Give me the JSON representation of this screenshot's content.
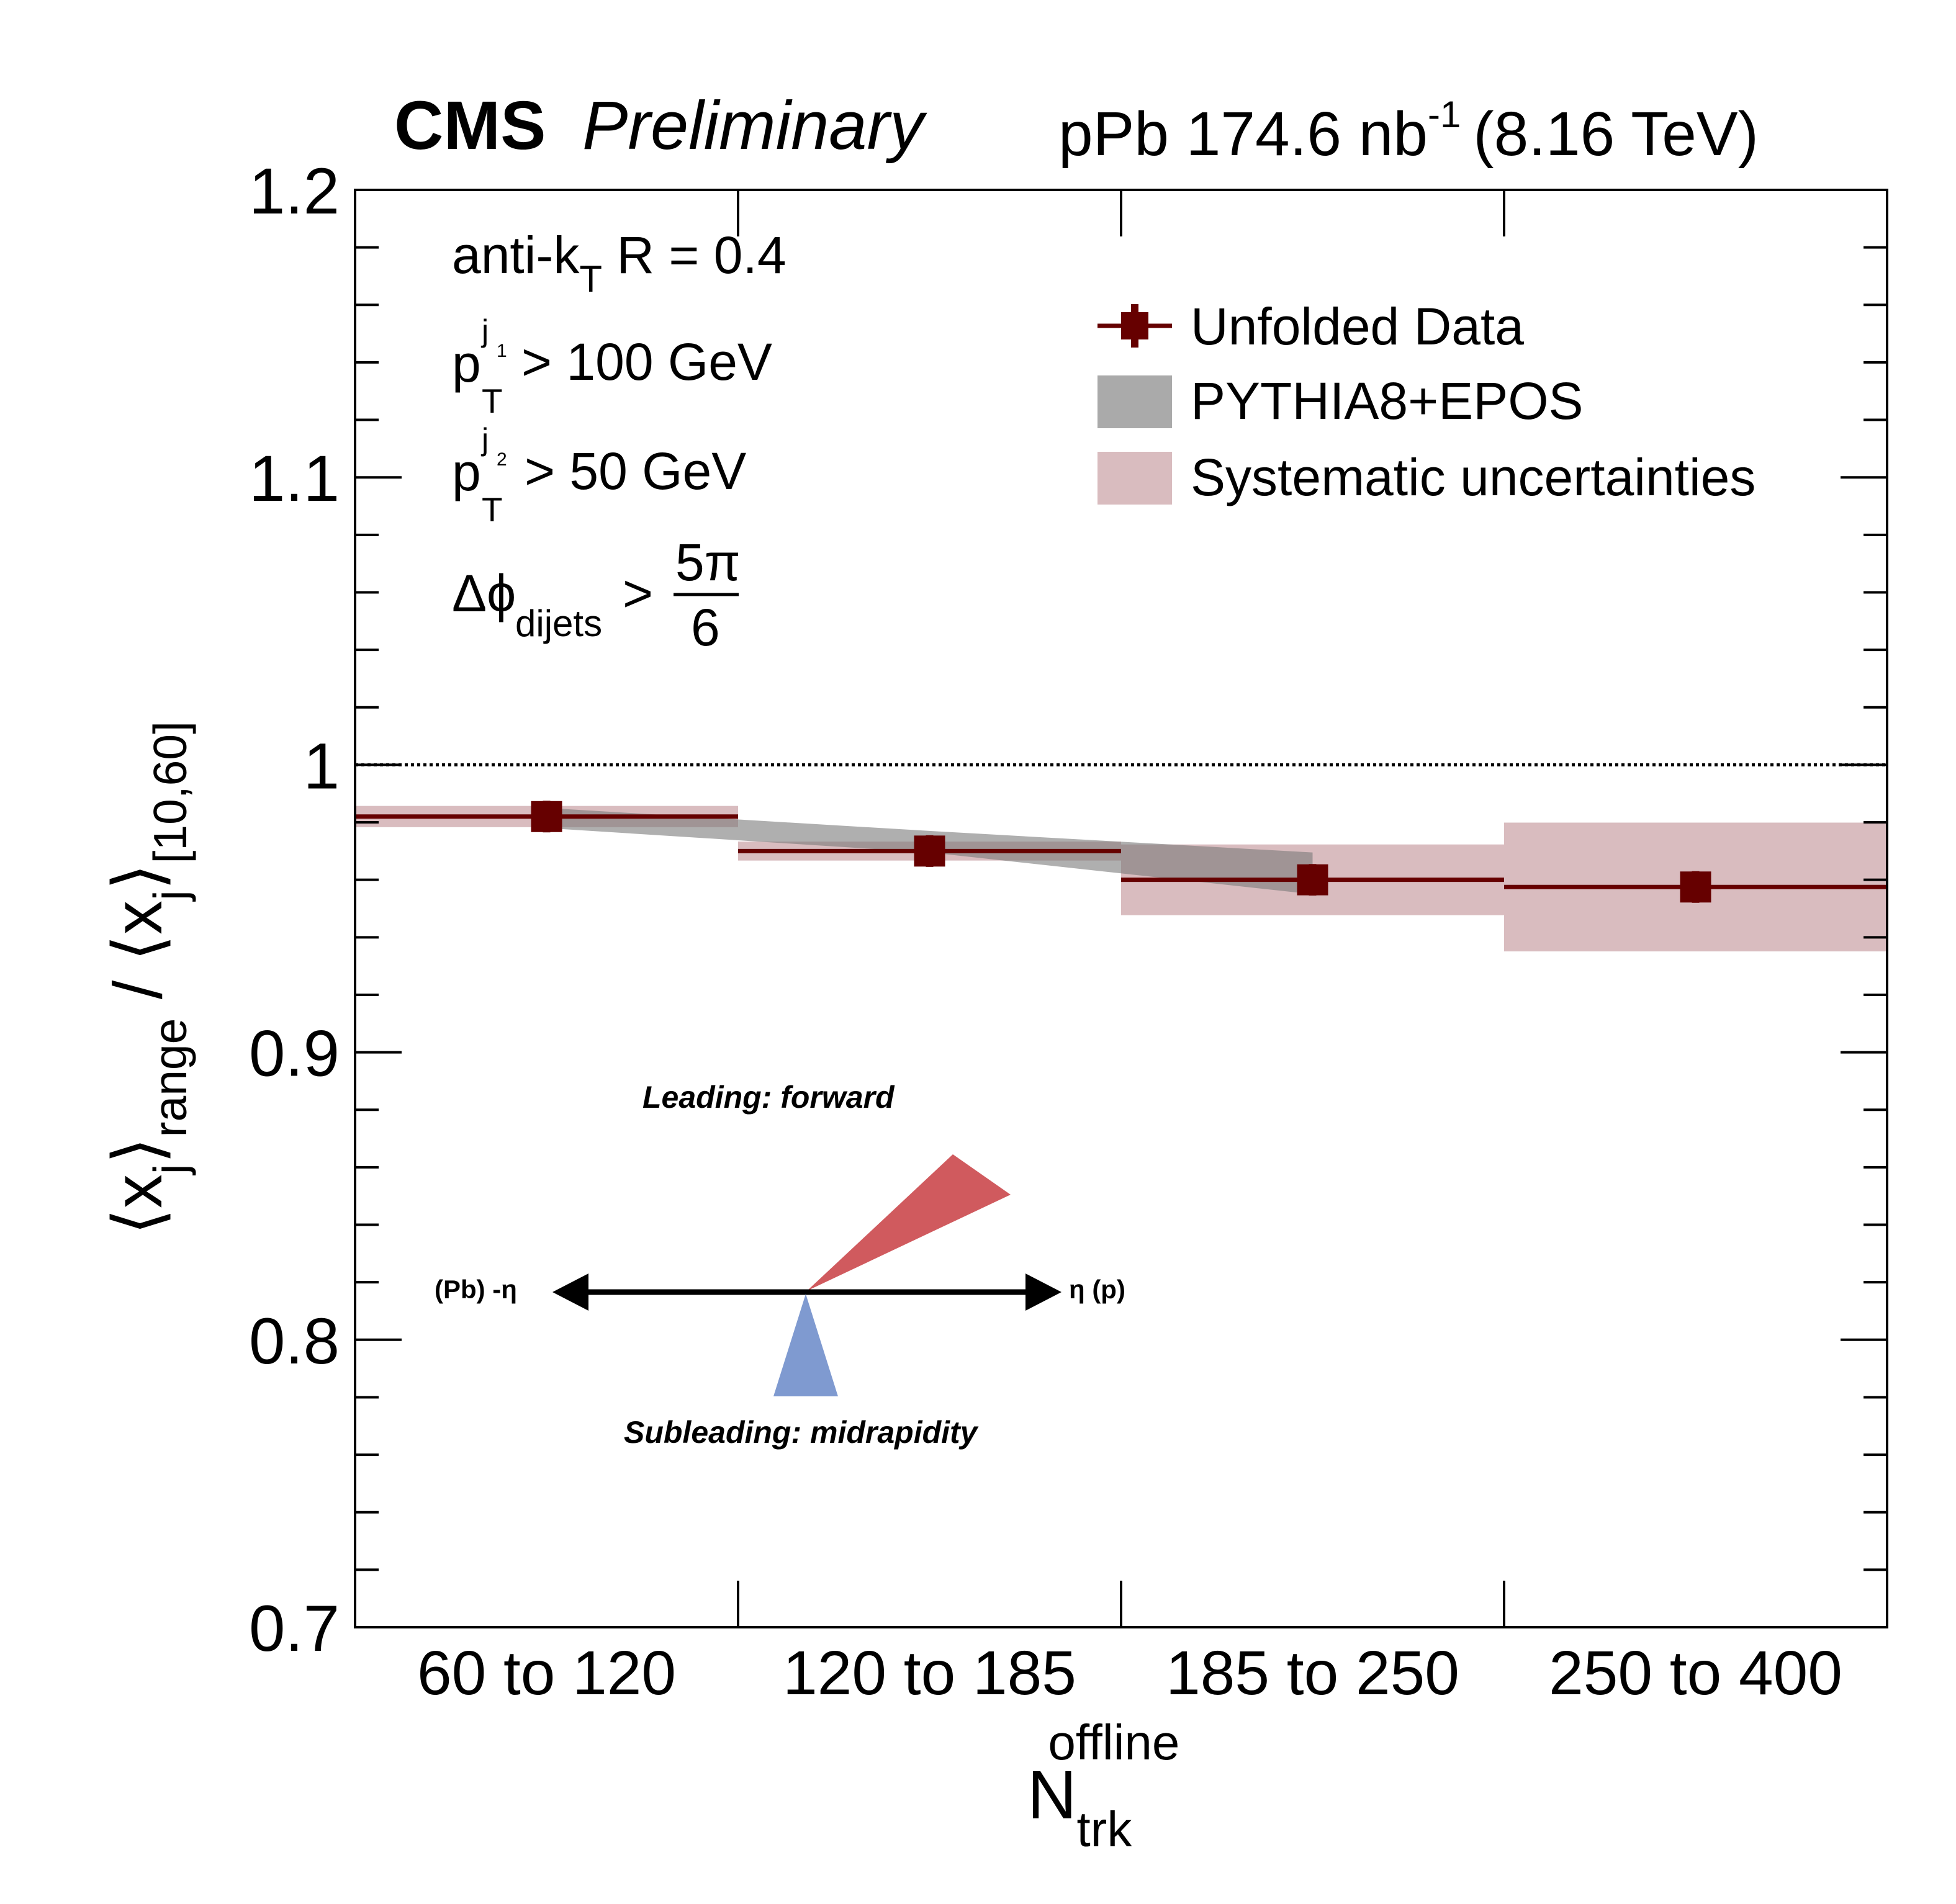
{
  "chart_data": {
    "type": "scatter",
    "header": {
      "experiment": "CMS",
      "status": "Preliminary",
      "lumi": "pPb 174.6 nb",
      "lumi_exp": "-1",
      "energy": "(8.16 TeV)"
    },
    "ylabel": "⟨x_j⟩_range / ⟨x_j⟩_[10,60]",
    "ylabel_parts": {
      "a": "⟨x",
      "a_sub": "j",
      "b": "⟩",
      "b_sub": "range",
      "c": " / ⟨x",
      "c_sub": "j",
      "d": "⟩",
      "d_sub": "[10,60]"
    },
    "xlabel": {
      "main": "N",
      "sub": "trk",
      "sup": "offline"
    },
    "ylim": [
      0.7,
      1.2
    ],
    "yticks": [
      "0.7",
      "0.8",
      "0.9",
      "1",
      "1.1",
      "1.2"
    ],
    "categories": [
      "60 to 120",
      "120 to 185",
      "185 to 250",
      "250 to 400"
    ],
    "reference_line": 1.0,
    "series": [
      {
        "name": "Unfolded Data",
        "color": "#660000",
        "values": [
          0.982,
          0.97,
          0.96,
          0.9575
        ],
        "stat_err": [
          0.0055,
          0.0055,
          0.0055,
          0.0055
        ]
      },
      {
        "name": "Systematic uncertainties",
        "color": "#d9bcbf",
        "values": [
          0.982,
          0.97,
          0.96,
          0.9575
        ],
        "syst_err": [
          0.0037,
          0.0033,
          0.0123,
          0.0224
        ]
      },
      {
        "name": "PYTHIA8+EPOS",
        "color": "#999999",
        "band_upper": [
          0.985,
          0.977,
          0.9695
        ],
        "band_lower": [
          0.978,
          0.9695,
          0.955
        ]
      }
    ],
    "legend_position": "top-right",
    "annotations": {
      "algo": "anti-k",
      "algo_sub": "T",
      "algo_rest": " R = 0.4",
      "pt1": "> 100 GeV",
      "pt2": "> 50 GeV",
      "p": "p",
      "T": "T",
      "j1": "j",
      "j1n": "1",
      "j2": "j",
      "j2n": "2",
      "dphi": "Δϕ",
      "dphi_sub": "dijets",
      "gt": ">",
      "frac_num": "5π",
      "frac_den": "6",
      "leading": "Leading: forward",
      "subleading": "Subleading: midrapidity",
      "left_axis": "(Pb) -η",
      "right_axis": "η (p)",
      "leading_color": "#d05a5e",
      "subleading_color": "#7f9ad0"
    }
  }
}
